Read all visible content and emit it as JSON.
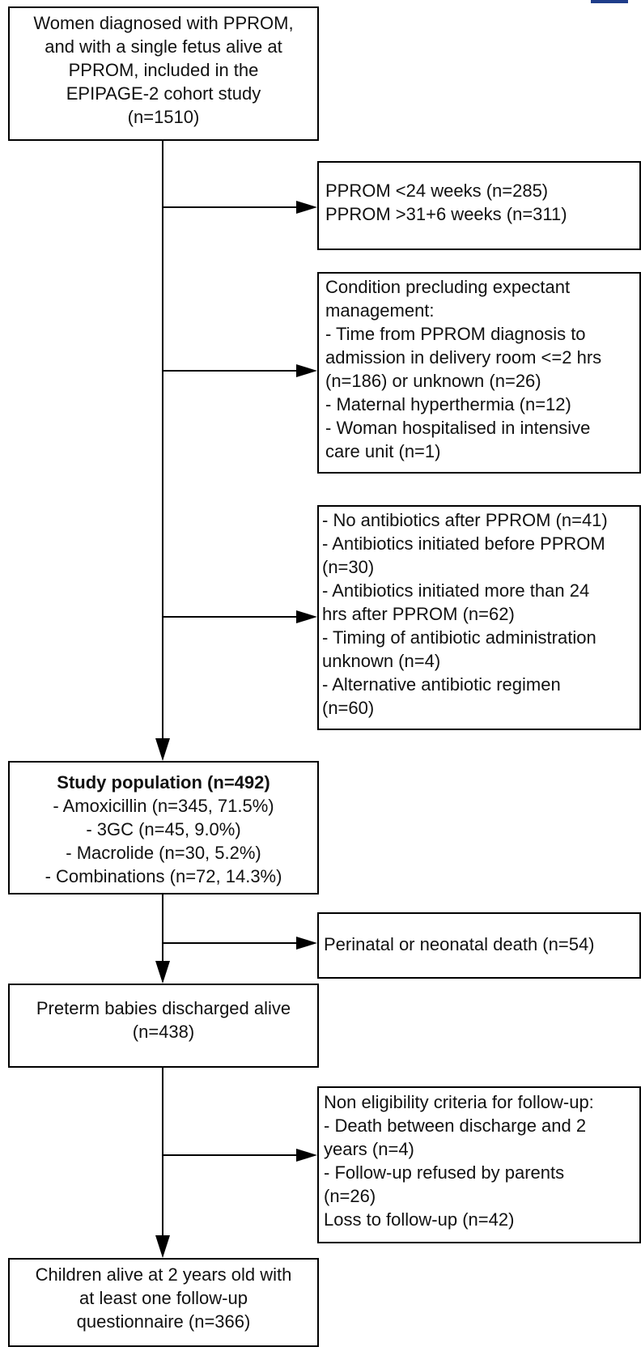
{
  "colors": {
    "stroke": "#000000",
    "text": "#111111",
    "background": "#ffffff",
    "accent": "#1f3d8a"
  },
  "boxes": {
    "cohort": {
      "lines": [
        "Women diagnosed with PPROM,",
        "and with a single fetus alive at",
        "PPROM, included in the",
        "EPIPAGE-2 cohort study",
        "(n=1510)"
      ]
    },
    "excl_gestation": {
      "lines": [
        "PPROM <24 weeks (n=285)",
        "PPROM >31+6 weeks (n=311)"
      ]
    },
    "excl_condition": {
      "lines": [
        "Condition precluding expectant",
        "management:",
        "- Time from PPROM diagnosis to",
        "admission in delivery room <=2 hrs",
        "(n=186) or unknown (n=26)",
        "- Maternal hyperthermia (n=12)",
        "- Woman hospitalised in intensive",
        "care unit (n=1)"
      ]
    },
    "excl_antibiotics": {
      "lines": [
        "- No antibiotics after PPROM (n=41)",
        "- Antibiotics initiated before PPROM",
        "(n=30)",
        "- Antibiotics initiated more than 24",
        "hrs after PPROM (n=62)",
        "- Timing of antibiotic administration",
        "unknown (n=4)",
        "- Alternative antibiotic regimen",
        "(n=60)"
      ]
    },
    "study_population": {
      "title": "Study population (n=492)",
      "lines": [
        "- Amoxicillin (n=345, 71.5%)",
        "- 3GC (n=45, 9.0%)",
        "- Macrolide (n=30, 5.2%)",
        "- Combinations (n=72, 14.3%)"
      ]
    },
    "excl_death": {
      "lines": [
        "Perinatal or neonatal death (n=54)"
      ]
    },
    "discharged": {
      "lines": [
        "Preterm babies discharged alive",
        "(n=438)"
      ]
    },
    "excl_followup": {
      "lines": [
        "Non eligibility criteria for follow-up:",
        "- Death between discharge and 2",
        "years (n=4)",
        "- Follow-up refused by parents",
        "(n=26)",
        "Loss to follow-up (n=42)"
      ]
    },
    "followup": {
      "lines": [
        "Children alive at 2 years old with",
        "at least one follow-up",
        "questionnaire (n=366)"
      ]
    }
  }
}
